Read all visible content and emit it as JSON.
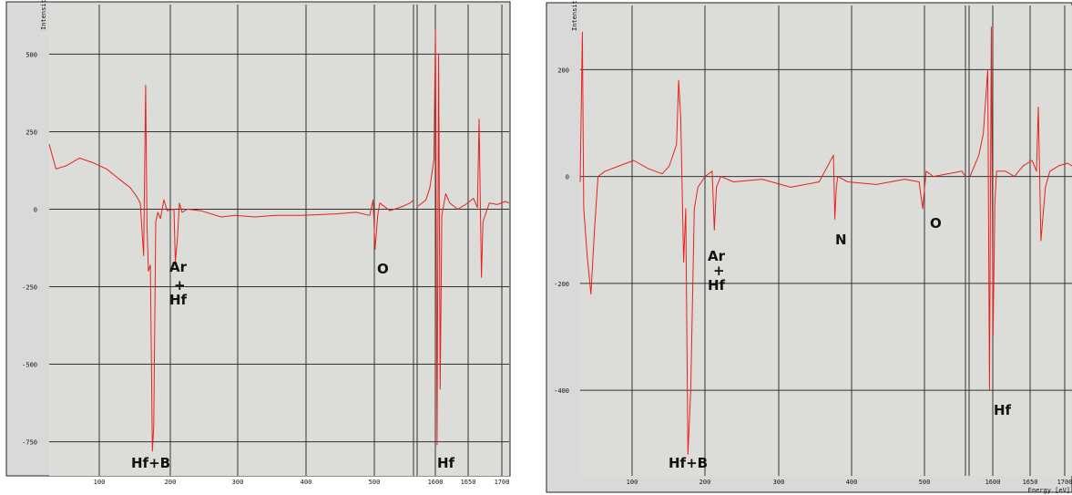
{
  "chart_data": [
    {
      "type": "line",
      "title": "",
      "ylabel": "Intensit",
      "xlabel": "",
      "xticks": [
        "100",
        "200",
        "300",
        "400",
        "500",
        "1600",
        "1650",
        "1700"
      ],
      "yticks": [
        "500",
        "250",
        "0",
        "-250",
        "-500",
        "-750"
      ],
      "annotations": [
        "Ar",
        "+",
        "Hf",
        "O",
        "Hf+B",
        "Hf"
      ],
      "series_color": "#e8211d",
      "grid": true,
      "segments": [
        {
          "xlim": [
            25,
            565
          ],
          "x": [
            25,
            35,
            50,
            70,
            90,
            110,
            130,
            145,
            155,
            160,
            165,
            168,
            170,
            172,
            175,
            178,
            180,
            183,
            186,
            190,
            195,
            200,
            210,
            212,
            215,
            218,
            222,
            230,
            250,
            280,
            300,
            330,
            360,
            400,
            450,
            480,
            500,
            505,
            508,
            512,
            515,
            530,
            550,
            560,
            565
          ],
          "y": [
            210,
            130,
            140,
            165,
            150,
            130,
            95,
            70,
            40,
            20,
            -150,
            400,
            -50,
            -200,
            -180,
            -780,
            -700,
            -40,
            -10,
            -30,
            30,
            -5,
            0,
            -170,
            -100,
            20,
            -10,
            0,
            -5,
            -25,
            -20,
            -25,
            -20,
            -20,
            -15,
            -10,
            -20,
            30,
            -130,
            -20,
            20,
            -5,
            10,
            20,
            30
          ]
        },
        {
          "xlim": [
            1590,
            1705
          ],
          "x": [
            1590,
            1600,
            1605,
            1610,
            1612,
            1614,
            1616,
            1618,
            1620,
            1625,
            1630,
            1640,
            1650,
            1660,
            1665,
            1667,
            1670,
            1672,
            1680,
            1690,
            1700,
            1705
          ],
          "y": [
            10,
            30,
            70,
            160,
            580,
            -760,
            500,
            -580,
            -20,
            50,
            20,
            0,
            15,
            35,
            5,
            290,
            -220,
            -40,
            20,
            15,
            25,
            20
          ]
        }
      ],
      "ylim": [
        -860,
        660
      ]
    },
    {
      "type": "line",
      "title": "",
      "ylabel": "Intensit",
      "xlabel": "Energy [eV]",
      "xticks": [
        "100",
        "200",
        "300",
        "400",
        "500",
        "1600",
        "1650",
        "1700"
      ],
      "yticks": [
        "200",
        "0",
        "-200",
        "-400"
      ],
      "annotations": [
        "Ar",
        "+",
        "Hf",
        "N",
        "O",
        "Hf+B",
        "Hf"
      ],
      "series_color": "#e8211d",
      "grid": true,
      "segments": [
        {
          "xlim": [
            25,
            565
          ],
          "x": [
            25,
            28,
            30,
            35,
            40,
            45,
            50,
            60,
            80,
            100,
            120,
            140,
            150,
            160,
            163,
            166,
            170,
            173,
            176,
            180,
            185,
            190,
            200,
            210,
            213,
            216,
            222,
            240,
            280,
            320,
            360,
            380,
            382,
            384,
            386,
            400,
            440,
            480,
            500,
            505,
            510,
            520,
            540,
            560,
            565
          ],
          "y": [
            -10,
            270,
            -60,
            -150,
            -220,
            -100,
            0,
            10,
            20,
            30,
            15,
            5,
            20,
            60,
            180,
            110,
            -160,
            -60,
            -520,
            -400,
            -60,
            -20,
            0,
            10,
            -100,
            -20,
            0,
            -10,
            -5,
            -20,
            -10,
            40,
            -80,
            -20,
            0,
            -10,
            -15,
            -5,
            -10,
            -60,
            10,
            0,
            5,
            10,
            0
          ]
        },
        {
          "xlim": [
            1590,
            1705
          ],
          "x": [
            1590,
            1595,
            1600,
            1605,
            1610,
            1612,
            1614,
            1616,
            1618,
            1620,
            1630,
            1640,
            1650,
            1660,
            1665,
            1667,
            1670,
            1675,
            1680,
            1690,
            1700,
            1705
          ],
          "y": [
            0,
            20,
            40,
            80,
            200,
            -400,
            280,
            -300,
            -50,
            10,
            10,
            0,
            20,
            30,
            10,
            130,
            -120,
            -20,
            10,
            20,
            25,
            20
          ]
        }
      ],
      "ylim": [
        -560,
        320
      ]
    }
  ]
}
